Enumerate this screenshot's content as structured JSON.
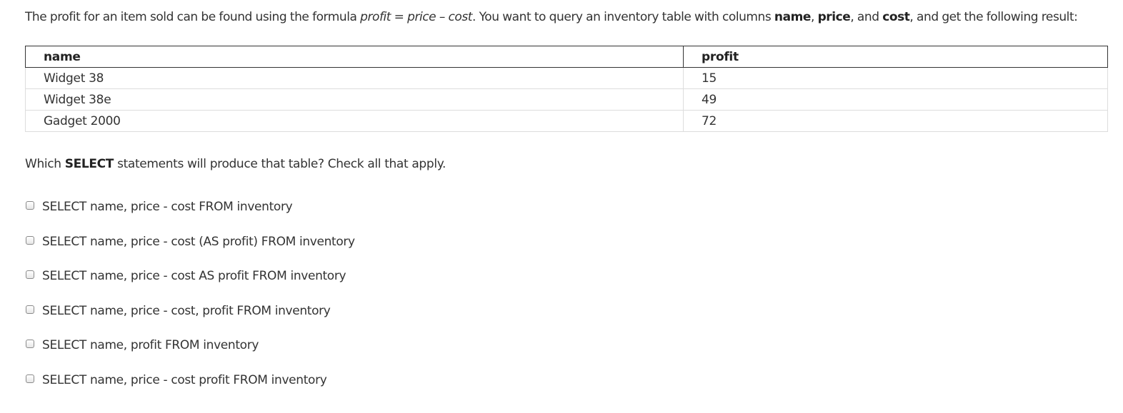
{
  "intro": {
    "part1": "The profit for an item sold can be found using the formula ",
    "formula_profit": "profit",
    "formula_eq": " = ",
    "formula_price": "price",
    "formula_minus": " – ",
    "formula_cost": "cost",
    "part2": ". You want to query an inventory table with columns ",
    "col_name": "name",
    "comma1": ", ",
    "col_price": "price",
    "and_text": ", and ",
    "col_cost": "cost",
    "part3": ", and get the following result:"
  },
  "result_table": {
    "headers": [
      "name",
      "profit"
    ],
    "rows": [
      [
        "Widget 38",
        "15"
      ],
      [
        "Widget 38e",
        "49"
      ],
      [
        "Gadget 2000",
        "72"
      ]
    ]
  },
  "question": {
    "prefix": "Which ",
    "keyword": "SELECT",
    "suffix": " statements will produce that table?  Check all that apply."
  },
  "options": [
    {
      "label": "SELECT name, price - cost FROM inventory",
      "checked": false
    },
    {
      "label": "SELECT name, price - cost (AS profit) FROM inventory",
      "checked": false
    },
    {
      "label": "SELECT name, price - cost AS profit FROM inventory",
      "checked": false
    },
    {
      "label": "SELECT name, price - cost, profit FROM inventory",
      "checked": false
    },
    {
      "label": "SELECT name, profit FROM inventory",
      "checked": false
    },
    {
      "label": "SELECT name, price - cost profit FROM inventory",
      "checked": false
    }
  ]
}
